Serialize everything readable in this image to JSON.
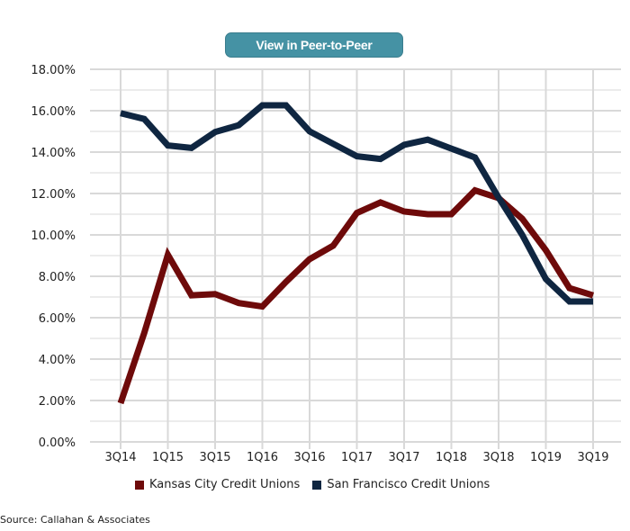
{
  "button": {
    "label": "View in Peer-to-Peer"
  },
  "source": "Source: Callahan & Associates",
  "chart_data": {
    "type": "line",
    "title": "",
    "xlabel": "",
    "ylabel": "",
    "ylim": [
      0,
      18
    ],
    "y_ticks": [
      "0.00%",
      "2.00%",
      "4.00%",
      "6.00%",
      "8.00%",
      "10.00%",
      "12.00%",
      "14.00%",
      "16.00%",
      "18.00%"
    ],
    "x_tick_labels": [
      "3Q14",
      "1Q15",
      "3Q15",
      "1Q16",
      "3Q16",
      "1Q17",
      "3Q17",
      "1Q18",
      "3Q18",
      "1Q19",
      "3Q19"
    ],
    "grid": true,
    "legend": "bottom",
    "x": [
      "3Q14",
      "4Q14",
      "1Q15",
      "2Q15",
      "3Q15",
      "4Q15",
      "1Q16",
      "2Q16",
      "3Q16",
      "4Q16",
      "1Q17",
      "2Q17",
      "3Q17",
      "4Q17",
      "1Q18",
      "2Q18",
      "3Q18",
      "4Q18",
      "1Q19",
      "2Q19",
      "3Q19"
    ],
    "series": [
      {
        "name": "Kansas City Credit Unions",
        "color": "#6e0a0a",
        "values": [
          1.87,
          5.26,
          9.04,
          7.08,
          7.14,
          6.71,
          6.54,
          7.73,
          8.83,
          9.48,
          11.06,
          11.57,
          11.13,
          11.0,
          11.0,
          12.15,
          11.78,
          10.78,
          9.26,
          7.43,
          7.08
        ]
      },
      {
        "name": "San Francisco Credit Unions",
        "color": "#0f2641",
        "values": [
          15.88,
          15.6,
          14.32,
          14.2,
          14.97,
          15.3,
          16.26,
          16.26,
          15.0,
          14.4,
          13.8,
          13.67,
          14.35,
          14.6,
          14.17,
          13.74,
          11.8,
          10.0,
          7.87,
          6.78,
          6.78
        ]
      }
    ]
  }
}
